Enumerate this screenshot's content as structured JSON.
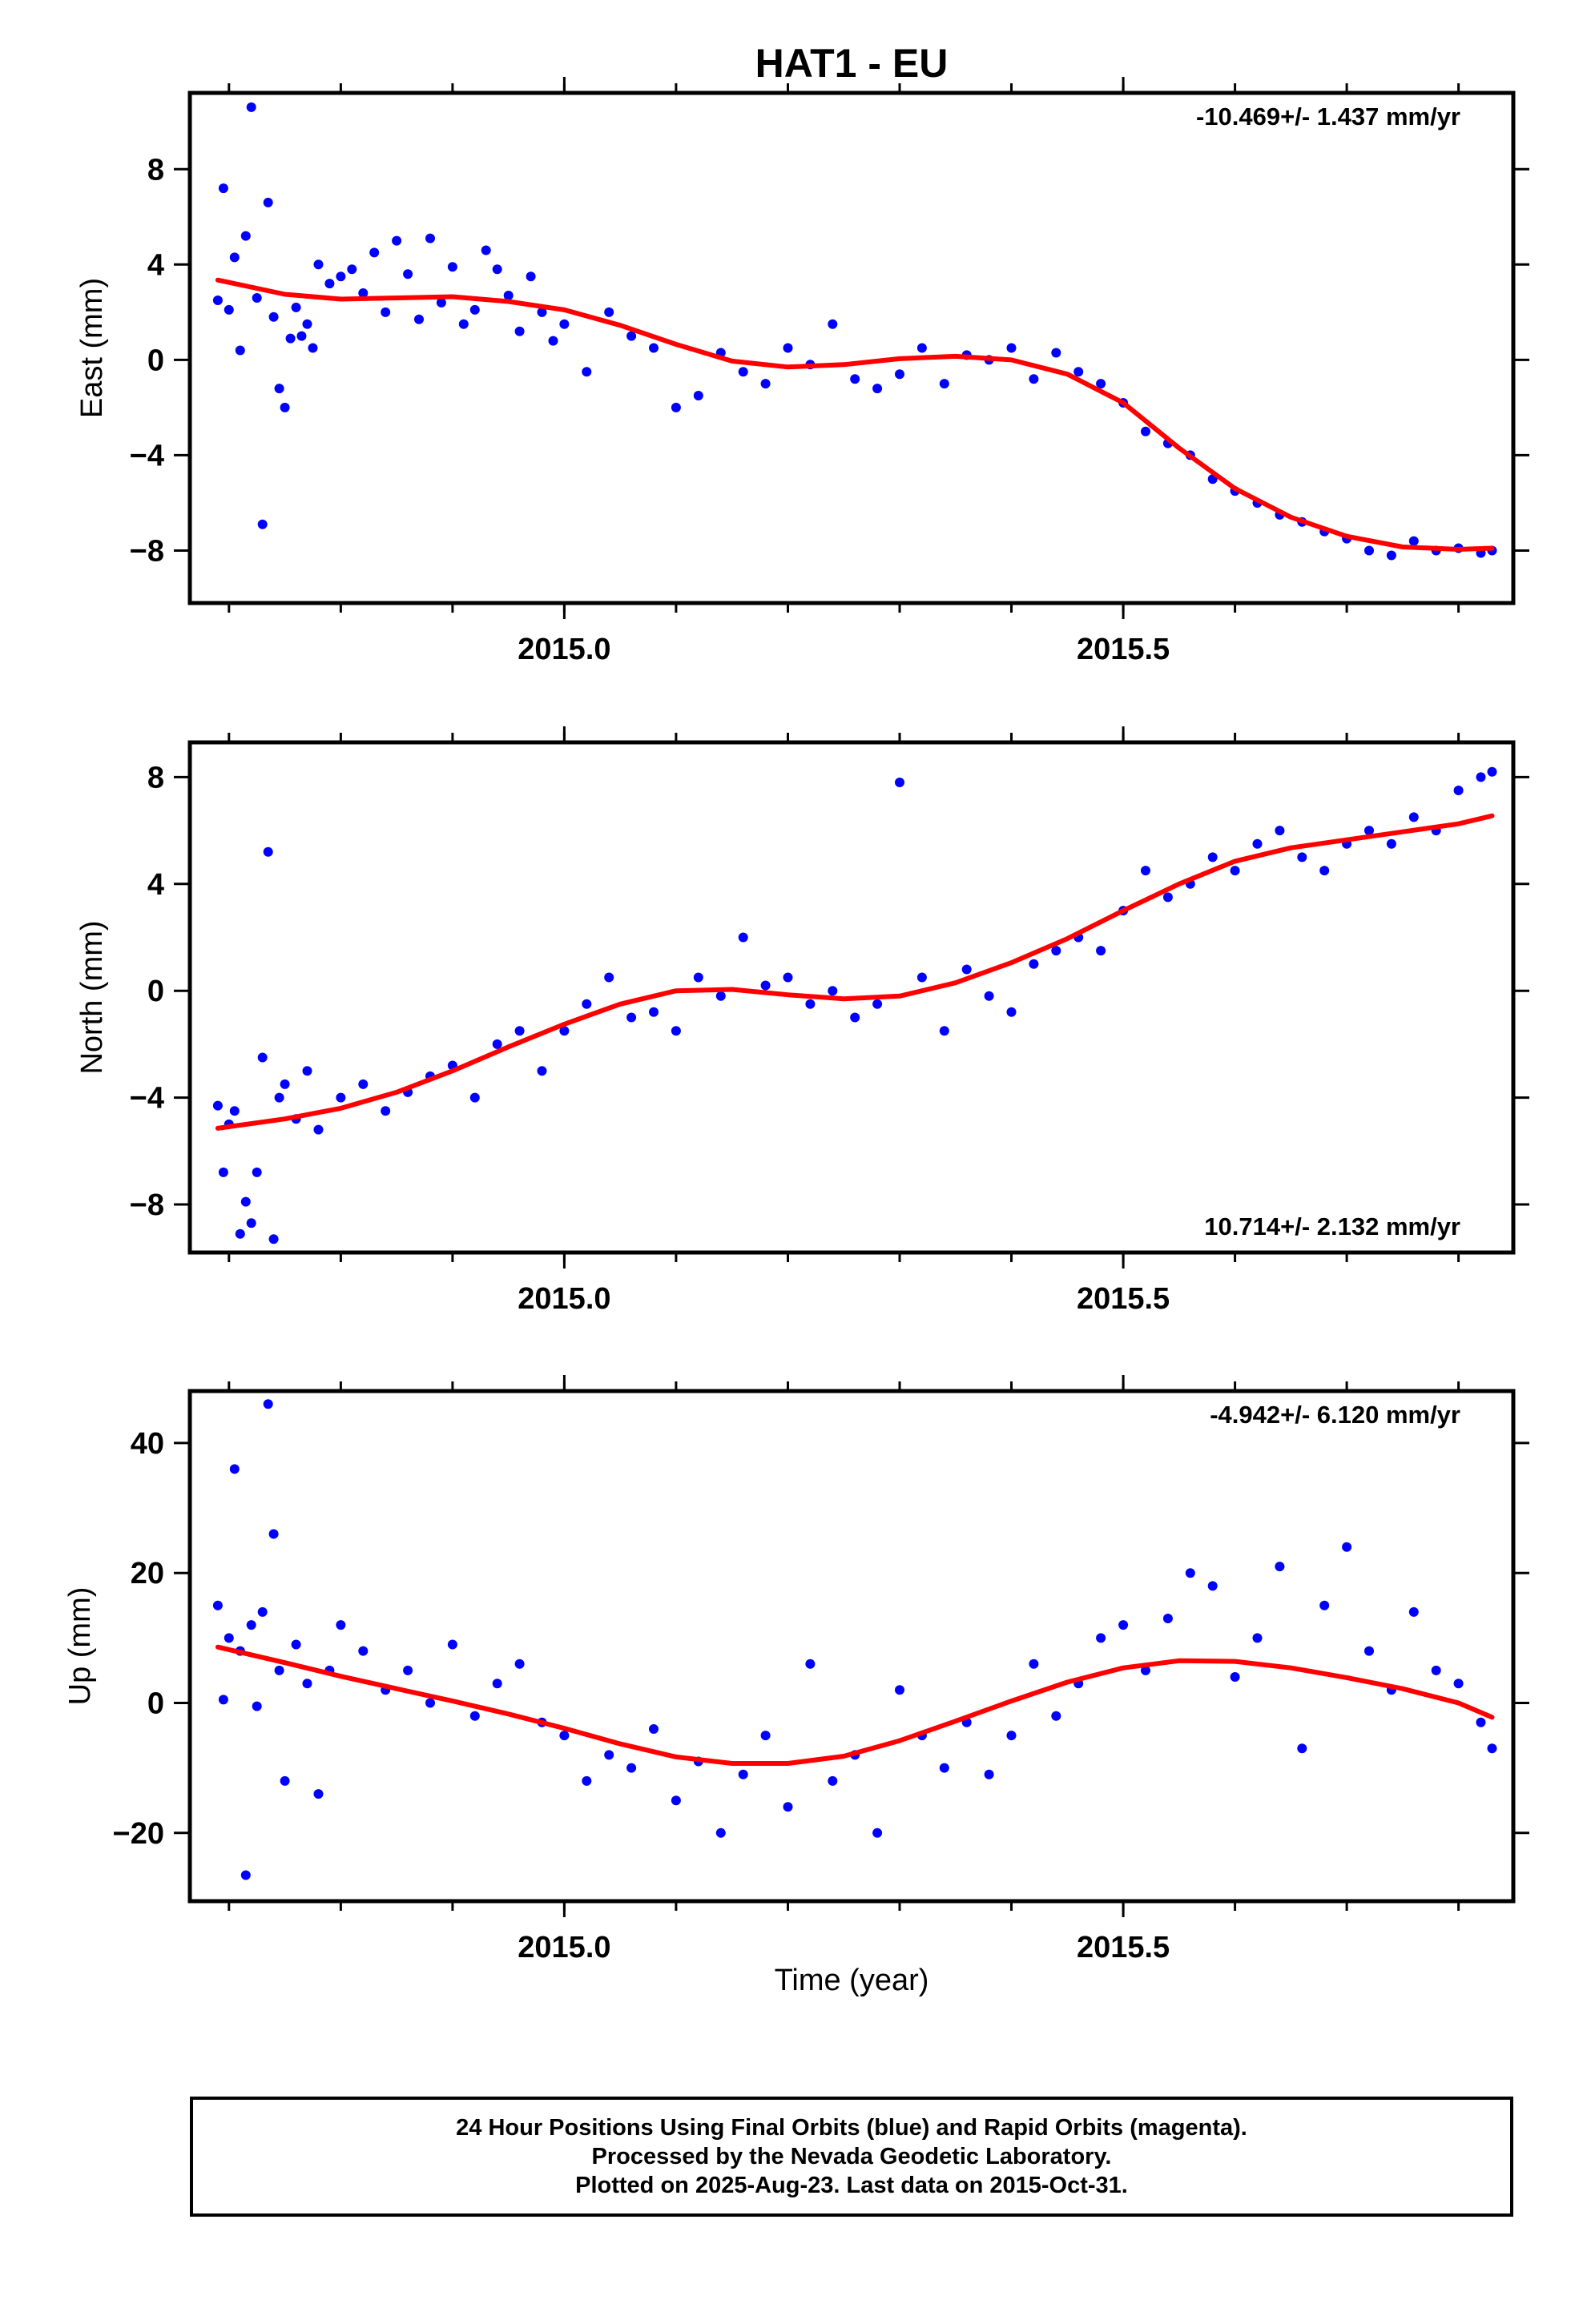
{
  "chart_data": [
    {
      "type": "scatter",
      "title": "HAT1 - EU",
      "ylabel": "East (mm)",
      "xlabel": "",
      "xlim": [
        2014.665,
        2015.849
      ],
      "ylim": [
        -10.2,
        11.2
      ],
      "x_major_ticks": [
        2015.0,
        2015.5
      ],
      "x_tick_labels": [
        "2015.0",
        "2015.5"
      ],
      "y_ticks": [
        -8,
        -4,
        0,
        4,
        8
      ],
      "y_tick_labels": [
        "−8",
        "−4",
        "0",
        "4",
        "8"
      ],
      "grid": false,
      "rate_text": "-10.469+/- 1.437 mm/yr",
      "rate_position": "top-right",
      "series": [
        {
          "name": "Final Orbits",
          "color": "#0000ff",
          "x": [
            2014.69,
            2014.695,
            2014.7,
            2014.705,
            2014.71,
            2014.715,
            2014.72,
            2014.725,
            2014.73,
            2014.735,
            2014.74,
            2014.745,
            2014.75,
            2014.755,
            2014.76,
            2014.765,
            2014.77,
            2014.775,
            2014.78,
            2014.79,
            2014.8,
            2014.81,
            2014.82,
            2014.83,
            2014.84,
            2014.85,
            2014.86,
            2014.87,
            2014.88,
            2014.89,
            2014.9,
            2014.91,
            2014.92,
            2014.93,
            2014.94,
            2014.95,
            2014.96,
            2014.97,
            2014.98,
            2014.99,
            2015.0,
            2015.02,
            2015.04,
            2015.06,
            2015.08,
            2015.1,
            2015.12,
            2015.14,
            2015.16,
            2015.18,
            2015.2,
            2015.22,
            2015.24,
            2015.26,
            2015.28,
            2015.3,
            2015.32,
            2015.34,
            2015.36,
            2015.38,
            2015.4,
            2015.42,
            2015.44,
            2015.46,
            2015.48,
            2015.5,
            2015.52,
            2015.54,
            2015.56,
            2015.58,
            2015.6,
            2015.62,
            2015.64,
            2015.66,
            2015.68,
            2015.7,
            2015.72,
            2015.74,
            2015.76,
            2015.78,
            2015.8,
            2015.82,
            2015.83
          ],
          "y": [
            2.5,
            7.2,
            2.1,
            4.3,
            0.4,
            5.2,
            10.6,
            2.6,
            -6.9,
            6.6,
            1.8,
            -1.2,
            -2.0,
            0.9,
            2.2,
            1.0,
            1.5,
            0.5,
            4.0,
            3.2,
            3.5,
            3.8,
            2.8,
            4.5,
            2.0,
            5.0,
            3.6,
            1.7,
            5.1,
            2.4,
            3.9,
            1.5,
            2.1,
            4.6,
            3.8,
            2.7,
            1.2,
            3.5,
            2.0,
            0.8,
            1.5,
            -0.5,
            2.0,
            1.0,
            0.5,
            -2.0,
            -1.5,
            0.3,
            -0.5,
            -1.0,
            0.5,
            -0.2,
            1.5,
            -0.8,
            -1.2,
            -0.6,
            0.5,
            -1.0,
            0.2,
            0.0,
            0.5,
            -0.8,
            0.3,
            -0.5,
            -1.0,
            -1.8,
            -3.0,
            -3.5,
            -4.0,
            -5.0,
            -5.5,
            -6.0,
            -6.5,
            -6.8,
            -7.2,
            -7.5,
            -8.0,
            -8.2,
            -7.6,
            -8.0,
            -7.9,
            -8.1,
            -8.0
          ]
        },
        {
          "name": "Fit",
          "color": "#ff0000",
          "kind": "line",
          "x": [
            2014.69,
            2014.75,
            2014.8,
            2014.85,
            2014.9,
            2014.95,
            2015.0,
            2015.05,
            2015.1,
            2015.15,
            2015.2,
            2015.25,
            2015.3,
            2015.35,
            2015.4,
            2015.45,
            2015.5,
            2015.55,
            2015.6,
            2015.65,
            2015.7,
            2015.75,
            2015.8,
            2015.83
          ],
          "y": [
            3.35,
            2.75,
            2.55,
            2.6,
            2.65,
            2.45,
            2.1,
            1.45,
            0.65,
            -0.05,
            -0.3,
            -0.2,
            0.05,
            0.15,
            0.0,
            -0.6,
            -1.8,
            -3.7,
            -5.4,
            -6.6,
            -7.4,
            -7.85,
            -7.95,
            -7.9
          ]
        }
      ]
    },
    {
      "type": "scatter",
      "title": "",
      "ylabel": "North (mm)",
      "xlabel": "",
      "xlim": [
        2014.665,
        2015.849
      ],
      "ylim": [
        -9.8,
        9.3
      ],
      "x_major_ticks": [
        2015.0,
        2015.5
      ],
      "x_tick_labels": [
        "2015.0",
        "2015.5"
      ],
      "y_ticks": [
        -8,
        -4,
        0,
        4,
        8
      ],
      "y_tick_labels": [
        "−8",
        "−4",
        "0",
        "4",
        "8"
      ],
      "grid": false,
      "rate_text": "10.714+/- 2.132 mm/yr",
      "rate_position": "bottom-right",
      "series": [
        {
          "name": "Final Orbits",
          "color": "#0000ff",
          "x": [
            2014.69,
            2014.695,
            2014.7,
            2014.705,
            2014.71,
            2014.715,
            2014.72,
            2014.725,
            2014.73,
            2014.735,
            2014.74,
            2014.745,
            2014.75,
            2014.76,
            2014.77,
            2014.78,
            2014.8,
            2014.82,
            2014.84,
            2014.86,
            2014.88,
            2014.9,
            2014.92,
            2014.94,
            2014.96,
            2014.98,
            2015.0,
            2015.02,
            2015.04,
            2015.06,
            2015.08,
            2015.1,
            2015.12,
            2015.14,
            2015.16,
            2015.18,
            2015.2,
            2015.22,
            2015.24,
            2015.26,
            2015.28,
            2015.3,
            2015.32,
            2015.34,
            2015.36,
            2015.38,
            2015.4,
            2015.42,
            2015.44,
            2015.46,
            2015.48,
            2015.5,
            2015.52,
            2015.54,
            2015.56,
            2015.58,
            2015.6,
            2015.62,
            2015.64,
            2015.66,
            2015.68,
            2015.7,
            2015.72,
            2015.74,
            2015.76,
            2015.78,
            2015.8,
            2015.82,
            2015.83
          ],
          "y": [
            -4.3,
            -6.8,
            -5.0,
            -4.5,
            -9.1,
            -7.9,
            -8.7,
            -6.8,
            -2.5,
            5.2,
            -9.3,
            -4.0,
            -3.5,
            -4.8,
            -3.0,
            -5.2,
            -4.0,
            -3.5,
            -4.5,
            -3.8,
            -3.2,
            -2.8,
            -4.0,
            -2.0,
            -1.5,
            -3.0,
            -1.5,
            -0.5,
            0.5,
            -1.0,
            -0.8,
            -1.5,
            0.5,
            -0.2,
            2.0,
            0.2,
            0.5,
            -0.5,
            0.0,
            -1.0,
            -0.5,
            7.8,
            0.5,
            -1.5,
            0.8,
            -0.2,
            -0.8,
            1.0,
            1.5,
            2.0,
            1.5,
            3.0,
            4.5,
            3.5,
            4.0,
            5.0,
            4.5,
            5.5,
            6.0,
            5.0,
            4.5,
            5.5,
            6.0,
            5.5,
            6.5,
            6.0,
            7.5,
            8.0,
            8.2
          ]
        },
        {
          "name": "Fit",
          "color": "#ff0000",
          "kind": "line",
          "x": [
            2014.69,
            2014.75,
            2014.8,
            2014.85,
            2014.9,
            2014.95,
            2015.0,
            2015.05,
            2015.1,
            2015.15,
            2015.2,
            2015.25,
            2015.3,
            2015.35,
            2015.4,
            2015.45,
            2015.5,
            2015.55,
            2015.6,
            2015.65,
            2015.7,
            2015.75,
            2015.8,
            2015.83
          ],
          "y": [
            -5.15,
            -4.8,
            -4.4,
            -3.8,
            -3.0,
            -2.1,
            -1.25,
            -0.5,
            0.0,
            0.05,
            -0.15,
            -0.3,
            -0.2,
            0.3,
            1.05,
            1.95,
            3.0,
            4.0,
            4.85,
            5.35,
            5.65,
            5.95,
            6.25,
            6.55
          ]
        }
      ]
    },
    {
      "type": "scatter",
      "title": "",
      "ylabel": "Up (mm)",
      "xlabel": "Time (year)",
      "xlim": [
        2014.665,
        2015.849
      ],
      "ylim": [
        -30.5,
        48.0
      ],
      "x_major_ticks": [
        2015.0,
        2015.5
      ],
      "x_tick_labels": [
        "2015.0",
        "2015.5"
      ],
      "y_ticks": [
        -20,
        0,
        20,
        40
      ],
      "y_tick_labels": [
        "−20",
        "0",
        "20",
        "40"
      ],
      "grid": false,
      "rate_text": "-4.942+/- 6.120 mm/yr",
      "rate_position": "top-right",
      "series": [
        {
          "name": "Final Orbits",
          "color": "#0000ff",
          "x": [
            2014.69,
            2014.695,
            2014.7,
            2014.705,
            2014.71,
            2014.715,
            2014.72,
            2014.725,
            2014.73,
            2014.735,
            2014.74,
            2014.745,
            2014.75,
            2014.76,
            2014.77,
            2014.78,
            2014.79,
            2014.8,
            2014.82,
            2014.84,
            2014.86,
            2014.88,
            2014.9,
            2014.92,
            2014.94,
            2014.96,
            2014.98,
            2015.0,
            2015.02,
            2015.04,
            2015.06,
            2015.08,
            2015.1,
            2015.12,
            2015.14,
            2015.16,
            2015.18,
            2015.2,
            2015.22,
            2015.24,
            2015.26,
            2015.28,
            2015.3,
            2015.32,
            2015.34,
            2015.36,
            2015.38,
            2015.4,
            2015.42,
            2015.44,
            2015.46,
            2015.48,
            2015.5,
            2015.52,
            2015.54,
            2015.56,
            2015.58,
            2015.6,
            2015.62,
            2015.64,
            2015.66,
            2015.68,
            2015.7,
            2015.72,
            2015.74,
            2015.76,
            2015.78,
            2015.8,
            2015.82,
            2015.83
          ],
          "y": [
            15,
            0.5,
            10,
            36,
            8,
            -26.5,
            12,
            -0.5,
            14,
            46,
            26,
            5,
            -12,
            9,
            3,
            -14,
            5,
            12,
            8,
            2,
            5,
            0,
            9,
            -2,
            3,
            6,
            -3,
            -5,
            -12,
            -8,
            -10,
            -4,
            -15,
            -9,
            -20,
            -11,
            -5,
            -16,
            6,
            -12,
            -8,
            -20,
            2,
            -5,
            -10,
            -3,
            -11,
            -5,
            6,
            -2,
            3,
            10,
            12,
            5,
            13,
            20,
            18,
            4,
            10,
            21,
            -7,
            15,
            24,
            8,
            2,
            14,
            5,
            3,
            -3,
            -7
          ]
        },
        {
          "name": "Fit",
          "color": "#ff0000",
          "kind": "line",
          "x": [
            2014.69,
            2014.75,
            2014.8,
            2014.85,
            2014.9,
            2014.95,
            2015.0,
            2015.05,
            2015.1,
            2015.15,
            2015.2,
            2015.25,
            2015.3,
            2015.35,
            2015.4,
            2015.45,
            2015.5,
            2015.55,
            2015.6,
            2015.65,
            2015.7,
            2015.75,
            2015.8,
            2015.83
          ],
          "y": [
            8.6,
            6.2,
            4.1,
            2.2,
            0.3,
            -1.7,
            -3.9,
            -6.3,
            -8.3,
            -9.3,
            -9.3,
            -8.2,
            -5.8,
            -2.8,
            0.3,
            3.2,
            5.4,
            6.5,
            6.4,
            5.4,
            3.9,
            2.2,
            0.0,
            -2.2
          ]
        }
      ]
    }
  ],
  "footer": {
    "line1": "24 Hour Positions Using Final Orbits (blue) and Rapid Orbits (magenta).",
    "line2": "Processed by the Nevada Geodetic Laboratory.",
    "line3": "Plotted on 2025-Aug-23. Last data on 2015-Oct-31."
  }
}
